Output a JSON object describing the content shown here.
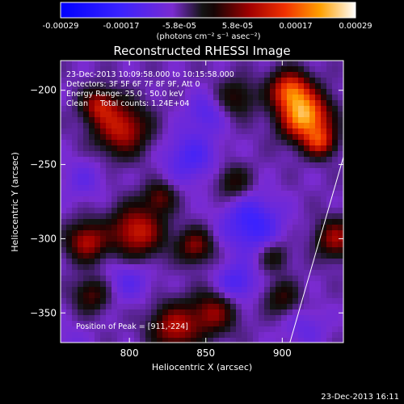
{
  "chart_data": {
    "type": "heatmap",
    "title": "Reconstructed RHESSI Image",
    "xlabel": "Heliocentric X (arcsec)",
    "ylabel": "Heliocentric Y (arcsec)",
    "xlim": [
      755,
      940
    ],
    "ylim": [
      -370,
      -180
    ],
    "x_ticks": [
      800,
      850,
      900
    ],
    "y_ticks": [
      -200,
      -250,
      -300,
      -350
    ],
    "colorbar": {
      "ticks": [
        "-0.00029",
        "-0.00017",
        "-5.8e-05",
        "5.8e-05",
        "0.00017",
        "0.00029"
      ],
      "tick_values": [
        -0.00029,
        -0.00017,
        -5.8e-05,
        5.8e-05,
        0.00017,
        0.00029
      ],
      "range": [
        -0.00029,
        0.00029
      ],
      "units_label": "(photons cm⁻² s⁻¹ asec⁻²)"
    },
    "annotations": [
      "23-Dec-2013 10:09:58.000 to 10:15:58.000",
      "Detectors: 3F 5F 6F 7F 8F 9F, Att 0",
      "Energy Range: 25.0 - 50.0 keV",
      "Clean     Total counts: 1.24E+04"
    ],
    "peak_text": "Position of Peak = [911,-224]",
    "peak_position": [
      911,
      -224
    ],
    "limb_line": [
      [
        905,
        -370
      ],
      [
        940,
        -245
      ]
    ],
    "sources": [
      {
        "x": 915,
        "y": -218,
        "sigma": 11,
        "amp": 1.0
      },
      {
        "x": 905,
        "y": -200,
        "sigma": 9,
        "amp": 0.75
      },
      {
        "x": 925,
        "y": -235,
        "sigma": 7,
        "amp": 0.55
      },
      {
        "x": 795,
        "y": -226,
        "sigma": 12,
        "amp": 0.6
      },
      {
        "x": 780,
        "y": -210,
        "sigma": 8,
        "amp": 0.5
      },
      {
        "x": 805,
        "y": -295,
        "sigma": 12,
        "amp": 0.62
      },
      {
        "x": 772,
        "y": -302,
        "sigma": 9,
        "amp": 0.55
      },
      {
        "x": 820,
        "y": -272,
        "sigma": 7,
        "amp": 0.35
      },
      {
        "x": 843,
        "y": -305,
        "sigma": 8,
        "amp": 0.45
      },
      {
        "x": 830,
        "y": -360,
        "sigma": 11,
        "amp": 0.55
      },
      {
        "x": 855,
        "y": -350,
        "sigma": 10,
        "amp": 0.45
      },
      {
        "x": 775,
        "y": -338,
        "sigma": 8,
        "amp": 0.35
      },
      {
        "x": 935,
        "y": -300,
        "sigma": 9,
        "amp": 0.5
      },
      {
        "x": 870,
        "y": -205,
        "sigma": 9,
        "amp": 0.3
      },
      {
        "x": 868,
        "y": -262,
        "sigma": 8,
        "amp": 0.3
      },
      {
        "x": 895,
        "y": -312,
        "sigma": 7,
        "amp": 0.25
      },
      {
        "x": 900,
        "y": -340,
        "sigma": 8,
        "amp": 0.3
      },
      {
        "x": 840,
        "y": -245,
        "sigma": 12,
        "amp": -0.28
      },
      {
        "x": 850,
        "y": -215,
        "sigma": 9,
        "amp": -0.22
      },
      {
        "x": 880,
        "y": -290,
        "sigma": 13,
        "amp": -0.38
      },
      {
        "x": 870,
        "y": -330,
        "sigma": 9,
        "amp": -0.3
      },
      {
        "x": 800,
        "y": -328,
        "sigma": 10,
        "amp": -0.2
      },
      {
        "x": 770,
        "y": -260,
        "sigma": 10,
        "amp": -0.15
      },
      {
        "x": 915,
        "y": -360,
        "sigma": 10,
        "amp": -0.15
      },
      {
        "x": 760,
        "y": -370,
        "sigma": 8,
        "amp": -0.1
      }
    ]
  },
  "footer": {
    "timestamp": "23-Dec-2013 16:11"
  }
}
